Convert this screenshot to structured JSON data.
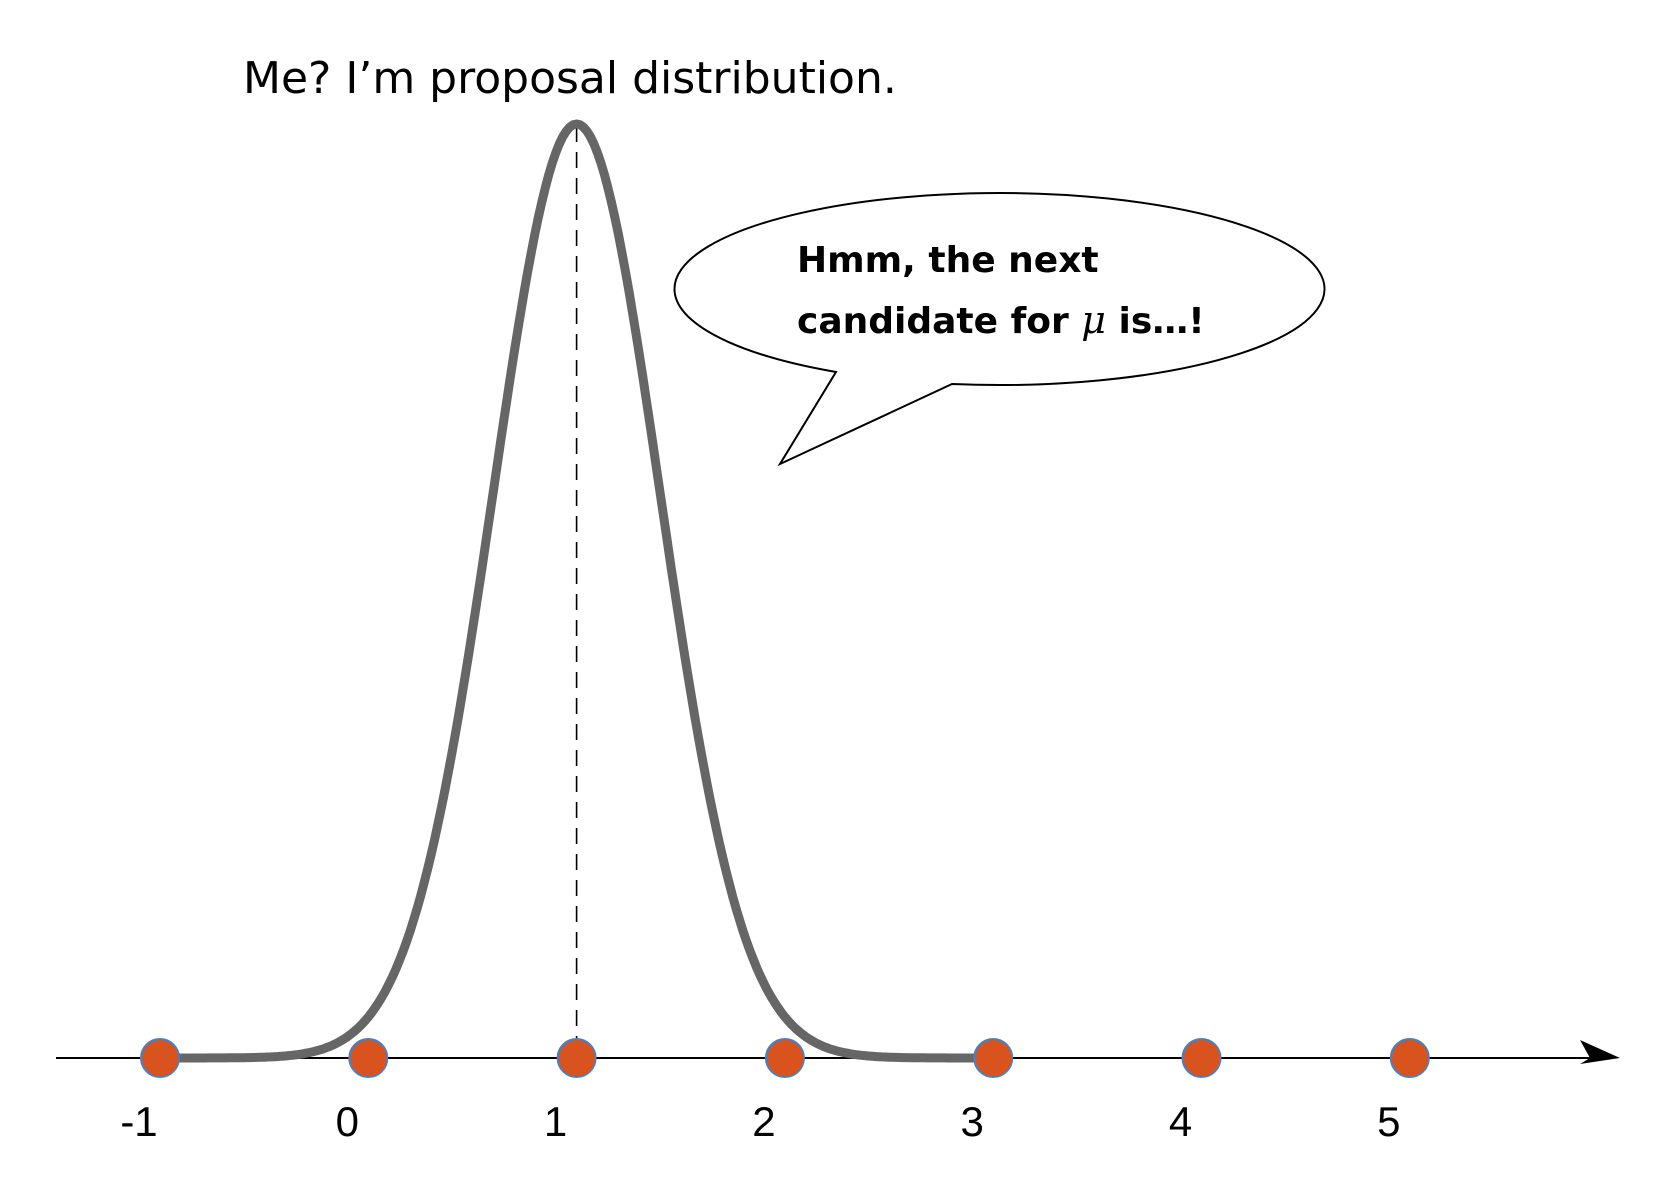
{
  "title": "Me? I’m proposal distribution.",
  "speech_bubble": {
    "line1": "Hmm, the next",
    "line2_before": "candidate for ",
    "symbol": "μ",
    "line2_after": " is…!"
  },
  "axis": {
    "tick_labels": [
      "-1",
      "0",
      "1",
      "2",
      "3",
      "4",
      "5"
    ],
    "point_values": [
      -1,
      0,
      1,
      2,
      3,
      4,
      5
    ]
  },
  "proposal": {
    "mean": 1,
    "support": [
      -1,
      3
    ]
  },
  "colors": {
    "curve": "#666666",
    "point_fill": "#d9531e",
    "point_stroke": "#4a7fc1",
    "axis": "#000000",
    "dashed_line": "#000000"
  }
}
